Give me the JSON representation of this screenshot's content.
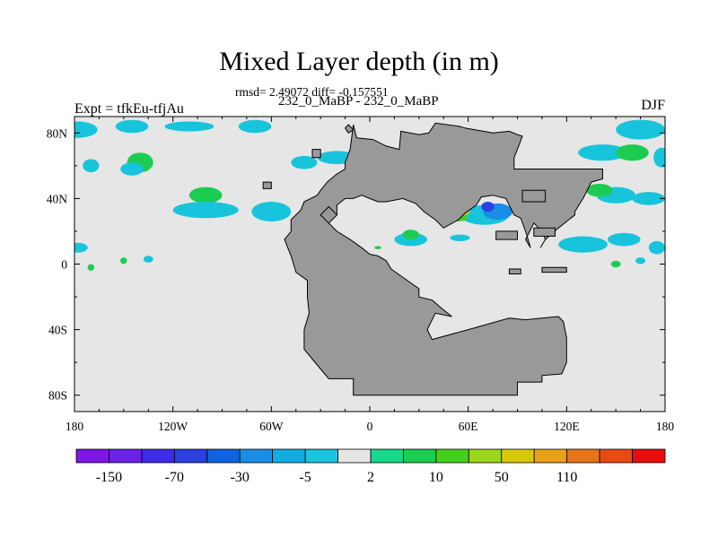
{
  "chart_data": {
    "type": "heatmap",
    "title": "Mixed Layer depth (in m)",
    "subtitle_stats": "rmsd= 2.49072 diff= -0.157551",
    "subtitle_runs": "232_0_MaBP - 232_0_MaBP",
    "left_string": "Expt = tfkEu-tfjAu",
    "right_string": "DJF",
    "xlim": [
      -180,
      180
    ],
    "ylim": [
      -90,
      90
    ],
    "x_ticks": [
      {
        "value": -180,
        "label": "180"
      },
      {
        "value": -120,
        "label": "120W"
      },
      {
        "value": -60,
        "label": "60W"
      },
      {
        "value": 0,
        "label": "0"
      },
      {
        "value": 60,
        "label": "60E"
      },
      {
        "value": 120,
        "label": "120E"
      },
      {
        "value": 180,
        "label": "180"
      }
    ],
    "y_ticks": [
      {
        "value": 80,
        "label": "80N"
      },
      {
        "value": 40,
        "label": "40N"
      },
      {
        "value": 0,
        "label": "0"
      },
      {
        "value": -40,
        "label": "40S"
      },
      {
        "value": -80,
        "label": "80S"
      }
    ],
    "colorbar": {
      "levels": [
        -150,
        -110,
        -70,
        -50,
        -30,
        -10,
        -5,
        -2,
        2,
        5,
        10,
        30,
        50,
        70,
        110,
        150
      ],
      "labels": [
        {
          "after_box": 1,
          "label": "-150"
        },
        {
          "after_box": 3,
          "label": "-70"
        },
        {
          "after_box": 5,
          "label": "-30"
        },
        {
          "after_box": 7,
          "label": "-5"
        },
        {
          "after_box": 9,
          "label": "2"
        },
        {
          "after_box": 11,
          "label": "10"
        },
        {
          "after_box": 13,
          "label": "50"
        },
        {
          "after_box": 15,
          "label": "110"
        }
      ],
      "colors": [
        "#7d16e6",
        "#6a22e6",
        "#3b2ce8",
        "#2a41e0",
        "#0f62e0",
        "#1a8ee6",
        "#12aee0",
        "#18c4dc",
        "#e6e6e6",
        "#16d888",
        "#1ccc50",
        "#44d01a",
        "#9cd61c",
        "#d8c80c",
        "#e8a016",
        "#e87418",
        "#e84a14",
        "#e80c0c"
      ]
    },
    "colors": {
      "ocean_zero": "#e6e6e6",
      "land": "#999999"
    },
    "land_regions": [
      [
        [
          -10,
          85
        ],
        [
          -8,
          77
        ],
        [
          2,
          76
        ],
        [
          10,
          72
        ],
        [
          18,
          70
        ],
        [
          19,
          81
        ],
        [
          30,
          79
        ],
        [
          36,
          80
        ],
        [
          40,
          86
        ],
        [
          55,
          84
        ],
        [
          58,
          83
        ],
        [
          75,
          80
        ],
        [
          85,
          81
        ],
        [
          90,
          79
        ],
        [
          93,
          78
        ],
        [
          90,
          70
        ],
        [
          88,
          65
        ],
        [
          88,
          58
        ],
        [
          142,
          58
        ],
        [
          142,
          52
        ],
        [
          135,
          50
        ],
        [
          132,
          44
        ],
        [
          130,
          40
        ],
        [
          125,
          32
        ],
        [
          125,
          30
        ],
        [
          120,
          26
        ],
        [
          115,
          22
        ],
        [
          107,
          15
        ],
        [
          104,
          10
        ],
        [
          107,
          15
        ],
        [
          105,
          20
        ],
        [
          100,
          25
        ],
        [
          95,
          15
        ],
        [
          98,
          10
        ],
        [
          95,
          20
        ],
        [
          92,
          28
        ],
        [
          88,
          30
        ],
        [
          83,
          40
        ],
        [
          75,
          42
        ],
        [
          68,
          41
        ],
        [
          65,
          36
        ],
        [
          58,
          31
        ],
        [
          54,
          27
        ],
        [
          45,
          22
        ],
        [
          40,
          27
        ],
        [
          33,
          32
        ],
        [
          28,
          37
        ],
        [
          20,
          40
        ],
        [
          15,
          39
        ],
        [
          10,
          38
        ],
        [
          5,
          38
        ],
        [
          0,
          40
        ],
        [
          -5,
          42
        ],
        [
          -10,
          40
        ],
        [
          -15,
          40
        ],
        [
          -20,
          36
        ],
        [
          -20,
          30
        ],
        [
          -25,
          25
        ],
        [
          -20,
          20
        ],
        [
          -12,
          15
        ],
        [
          -5,
          10
        ],
        [
          0,
          6
        ],
        [
          5,
          5
        ],
        [
          10,
          2
        ],
        [
          13,
          -3
        ],
        [
          20,
          -8
        ],
        [
          30,
          -15
        ],
        [
          30,
          -20
        ],
        [
          38,
          -22
        ],
        [
          45,
          -28
        ],
        [
          50,
          -32
        ],
        [
          40,
          -30
        ],
        [
          35,
          -40
        ],
        [
          38,
          -46
        ],
        [
          60,
          -40
        ],
        [
          85,
          -33
        ],
        [
          95,
          -34
        ],
        [
          105,
          -33
        ],
        [
          115,
          -32
        ],
        [
          118,
          -35
        ],
        [
          120,
          -45
        ],
        [
          120,
          -60
        ],
        [
          117,
          -67
        ],
        [
          105,
          -68
        ],
        [
          105,
          -72
        ],
        [
          90,
          -72
        ],
        [
          90,
          -80
        ],
        [
          -10,
          -80
        ],
        [
          -10,
          -70
        ],
        [
          -25,
          -70
        ],
        [
          -30,
          -64
        ],
        [
          -35,
          -58
        ],
        [
          -40,
          -52
        ],
        [
          -40,
          -40
        ],
        [
          -37,
          -30
        ],
        [
          -38,
          -20
        ],
        [
          -38,
          -10
        ],
        [
          -45,
          -5
        ],
        [
          -48,
          5
        ],
        [
          -50,
          10
        ],
        [
          -52,
          15
        ],
        [
          -48,
          20
        ],
        [
          -48,
          27
        ],
        [
          -42,
          33
        ],
        [
          -40,
          38
        ],
        [
          -32,
          42
        ],
        [
          -30,
          45
        ],
        [
          -26,
          50
        ],
        [
          -20,
          55
        ],
        [
          -15,
          58
        ],
        [
          -15,
          62
        ],
        [
          -12,
          70
        ],
        [
          -10,
          85
        ]
      ],
      [
        [
          -13,
          80
        ],
        [
          -15,
          83
        ],
        [
          -13,
          85
        ],
        [
          -10,
          82
        ],
        [
          -13,
          80
        ]
      ],
      [
        [
          -35,
          65
        ],
        [
          -35,
          70
        ],
        [
          -30,
          70
        ],
        [
          -30,
          65
        ],
        [
          -35,
          65
        ]
      ],
      [
        [
          -65,
          50
        ],
        [
          -65,
          46
        ],
        [
          -60,
          46
        ],
        [
          -60,
          50
        ],
        [
          -65,
          50
        ]
      ],
      [
        [
          -25,
          25
        ],
        [
          -30,
          30
        ],
        [
          -25,
          35
        ],
        [
          -20,
          30
        ],
        [
          -25,
          25
        ]
      ],
      [
        [
          93,
          45
        ],
        [
          93,
          38
        ],
        [
          107,
          38
        ],
        [
          107,
          45
        ],
        [
          93,
          45
        ]
      ],
      [
        [
          100,
          22
        ],
        [
          100,
          17
        ],
        [
          113,
          17
        ],
        [
          113,
          22
        ],
        [
          100,
          22
        ]
      ],
      [
        [
          77,
          20
        ],
        [
          77,
          15
        ],
        [
          90,
          15
        ],
        [
          90,
          20
        ],
        [
          77,
          20
        ]
      ],
      [
        [
          105,
          -2
        ],
        [
          105,
          -5
        ],
        [
          120,
          -5
        ],
        [
          120,
          -2
        ],
        [
          105,
          -2
        ]
      ],
      [
        [
          85,
          -3
        ],
        [
          85,
          -6
        ],
        [
          92,
          -6
        ],
        [
          92,
          -3
        ],
        [
          85,
          -3
        ]
      ]
    ],
    "anomaly_patches": [
      {
        "level": -5,
        "cx": -178,
        "cy": 82,
        "rx": 12,
        "ry": 5
      },
      {
        "level": -5,
        "cx": -145,
        "cy": 84,
        "rx": 10,
        "ry": 4
      },
      {
        "level": -5,
        "cx": -110,
        "cy": 84,
        "rx": 15,
        "ry": 3
      },
      {
        "level": -5,
        "cx": -70,
        "cy": 84,
        "rx": 10,
        "ry": 4
      },
      {
        "level": -5,
        "cx": -170,
        "cy": 60,
        "rx": 5,
        "ry": 4
      },
      {
        "level": 5,
        "cx": -140,
        "cy": 62,
        "rx": 8,
        "ry": 6
      },
      {
        "level": -5,
        "cx": -145,
        "cy": 58,
        "rx": 7,
        "ry": 4
      },
      {
        "level": 5,
        "cx": -100,
        "cy": 42,
        "rx": 10,
        "ry": 5
      },
      {
        "level": -5,
        "cx": -100,
        "cy": 33,
        "rx": 20,
        "ry": 5
      },
      {
        "level": -5,
        "cx": -60,
        "cy": 32,
        "rx": 12,
        "ry": 6
      },
      {
        "level": -5,
        "cx": -40,
        "cy": 62,
        "rx": 8,
        "ry": 4
      },
      {
        "level": -5,
        "cx": -20,
        "cy": 65,
        "rx": 12,
        "ry": 4
      },
      {
        "level": -5,
        "cx": -178,
        "cy": 10,
        "rx": 6,
        "ry": 3
      },
      {
        "level": 5,
        "cx": -170,
        "cy": -2,
        "rx": 2,
        "ry": 2
      },
      {
        "level": 5,
        "cx": -150,
        "cy": 2,
        "rx": 2,
        "ry": 2
      },
      {
        "level": -5,
        "cx": -135,
        "cy": 3,
        "rx": 3,
        "ry": 2
      },
      {
        "level": -5,
        "cx": 142,
        "cy": 68,
        "rx": 15,
        "ry": 5
      },
      {
        "level": 5,
        "cx": 160,
        "cy": 68,
        "rx": 10,
        "ry": 5
      },
      {
        "level": -5,
        "cx": 165,
        "cy": 82,
        "rx": 15,
        "ry": 6
      },
      {
        "level": -5,
        "cx": 178,
        "cy": 65,
        "rx": 5,
        "ry": 6
      },
      {
        "level": -5,
        "cx": 150,
        "cy": 42,
        "rx": 12,
        "ry": 5
      },
      {
        "level": 5,
        "cx": 140,
        "cy": 45,
        "rx": 8,
        "ry": 4
      },
      {
        "level": -5,
        "cx": 170,
        "cy": 40,
        "rx": 10,
        "ry": 4
      },
      {
        "level": -5,
        "cx": 130,
        "cy": 12,
        "rx": 15,
        "ry": 5
      },
      {
        "level": -5,
        "cx": 155,
        "cy": 15,
        "rx": 10,
        "ry": 4
      },
      {
        "level": -5,
        "cx": 175,
        "cy": 10,
        "rx": 5,
        "ry": 4
      },
      {
        "level": -5,
        "cx": 165,
        "cy": 2,
        "rx": 3,
        "ry": 2
      },
      {
        "level": 5,
        "cx": 150,
        "cy": 0,
        "rx": 3,
        "ry": 2
      },
      {
        "level": -5,
        "cx": 25,
        "cy": 15,
        "rx": 10,
        "ry": 4
      },
      {
        "level": 5,
        "cx": 25,
        "cy": 18,
        "rx": 5,
        "ry": 3
      },
      {
        "level": -5,
        "cx": 70,
        "cy": 30,
        "rx": 15,
        "ry": 6
      },
      {
        "level": -30,
        "cx": 78,
        "cy": 32,
        "rx": 9,
        "ry": 5
      },
      {
        "level": -70,
        "cx": 72,
        "cy": 35,
        "rx": 4,
        "ry": 3
      },
      {
        "level": 10,
        "cx": 52,
        "cy": 28,
        "rx": 8,
        "ry": 2
      },
      {
        "level": 50,
        "cx": 58,
        "cy": 32,
        "rx": 3,
        "ry": 2
      },
      {
        "level": -5,
        "cx": 55,
        "cy": 16,
        "rx": 6,
        "ry": 2
      },
      {
        "level": -5,
        "cx": 110,
        "cy": 29,
        "rx": 5,
        "ry": 3
      },
      {
        "level": 5,
        "cx": 5,
        "cy": 10,
        "rx": 2,
        "ry": 1
      }
    ]
  }
}
